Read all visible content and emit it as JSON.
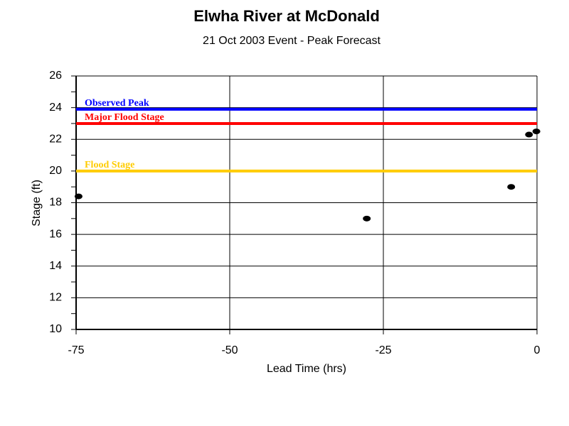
{
  "chart_data": {
    "type": "scatter",
    "title": "Elwha River at McDonald",
    "subtitle": "21 Oct 2003 Event - Peak Forecast",
    "x_label": "Lead Time (hrs)",
    "y_label": "Stage (ft)",
    "x": [
      -74.6,
      -27.7,
      -4.2,
      -1.3,
      -0.1
    ],
    "values": [
      18.4,
      17.0,
      19.0,
      22.3,
      22.5
    ],
    "color": "#000000",
    "xlim": [
      -75,
      0
    ],
    "xticks": [
      -75,
      -50,
      -25,
      0
    ],
    "ylim": [
      10,
      26
    ],
    "yticks": [
      10,
      12,
      14,
      16,
      18,
      20,
      22,
      24,
      26
    ],
    "grid": true,
    "reference_lines": [
      {
        "label": "Observed Peak",
        "value": 23.9,
        "color": "#0000ff"
      },
      {
        "label": "Major Flood Stage",
        "value": 23.0,
        "color": "#ff0000"
      },
      {
        "label": "Flood Stage",
        "value": 20.0,
        "color": "#ffcc00"
      }
    ]
  }
}
